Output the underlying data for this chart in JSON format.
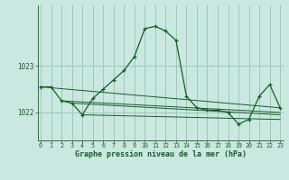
{
  "title": "Graphe pression niveau de la mer (hPa)",
  "background_color": "#c8e8e0",
  "plot_bg_color": "#c8e8e0",
  "grid_color": "#a0c8b8",
  "line_color": "#1a5c28",
  "x_ticks": [
    0,
    1,
    2,
    3,
    4,
    5,
    6,
    7,
    8,
    9,
    10,
    11,
    12,
    13,
    14,
    15,
    16,
    17,
    18,
    19,
    20,
    21,
    22,
    23
  ],
  "y_ticks": [
    1022,
    1023
  ],
  "ylim": [
    1021.4,
    1024.3
  ],
  "xlim": [
    -0.3,
    23.3
  ],
  "main_series": {
    "x": [
      0,
      1,
      2,
      3,
      4,
      5,
      6,
      7,
      8,
      9,
      10,
      11,
      12,
      13,
      14,
      15,
      16,
      17,
      18,
      19,
      20,
      21,
      22,
      23
    ],
    "y": [
      1022.55,
      1022.55,
      1022.25,
      1022.2,
      1021.95,
      1022.3,
      1022.5,
      1022.7,
      1022.9,
      1023.2,
      1023.8,
      1023.85,
      1023.75,
      1023.55,
      1022.35,
      1022.1,
      1022.05,
      1022.05,
      1022.0,
      1021.75,
      1021.85,
      1022.35,
      1022.6,
      1022.1
    ]
  },
  "flat_lines": [
    {
      "x": [
        0,
        23
      ],
      "y": [
        1022.55,
        1022.1
      ]
    },
    {
      "x": [
        2,
        23
      ],
      "y": [
        1022.25,
        1022.0
      ]
    },
    {
      "x": [
        3,
        23
      ],
      "y": [
        1022.2,
        1021.95
      ]
    },
    {
      "x": [
        4,
        23
      ],
      "y": [
        1021.95,
        1021.85
      ]
    }
  ]
}
